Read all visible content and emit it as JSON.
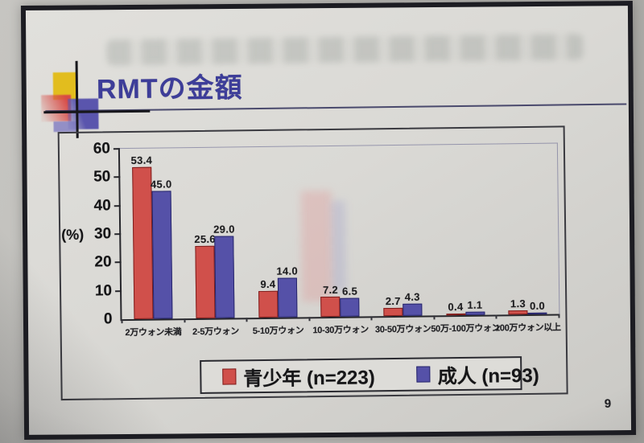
{
  "page": {
    "number": "9"
  },
  "slide": {
    "title": "RMTの金額"
  },
  "chart_data": {
    "type": "bar",
    "title": "RMTの金額",
    "xlabel": "",
    "ylabel": "(%)",
    "ylim": [
      0,
      60
    ],
    "yticks": [
      0,
      10,
      20,
      30,
      40,
      50,
      60
    ],
    "grid": false,
    "legend_position": "bottom",
    "value_labels": true,
    "categories": [
      "2万ウォン未満",
      "2-5万ウォン",
      "5-10万ウォン",
      "10-30万ウォン",
      "30-50万ウォン",
      "50万-100万ウォン",
      "100万ウォン以上"
    ],
    "series": [
      {
        "name": "青少年 (n=223)",
        "color": "#d0504b",
        "border": "#7e1d1c",
        "values": [
          53.4,
          25.6,
          9.4,
          7.2,
          2.7,
          0.4,
          1.3
        ]
      },
      {
        "name": "成人 (n=93)",
        "color": "#5551a8",
        "border": "#27266b",
        "values": [
          45.0,
          29.0,
          14.0,
          6.5,
          4.3,
          1.1,
          0.0
        ]
      }
    ]
  },
  "decoration": {
    "yellow": "#e2bd1e",
    "red": "#d84a45",
    "blue": "#5a55ad",
    "title_color": "#3d3d99"
  }
}
